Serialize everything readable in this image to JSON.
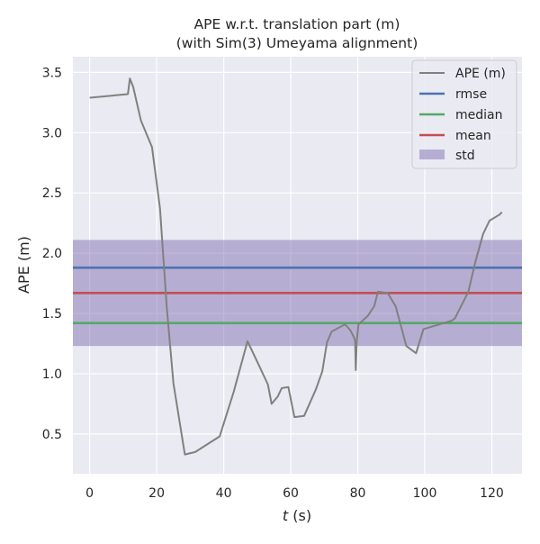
{
  "chart_data": {
    "type": "line",
    "title": "APE w.r.t. translation part (m)",
    "subtitle": "(with Sim(3) Umeyama alignment)",
    "xlabel_var": "t",
    "xlabel_unit": " (s)",
    "ylabel": "APE (m)",
    "xlim": [
      -5,
      129
    ],
    "ylim": [
      0.17,
      3.63
    ],
    "xticks": [
      0,
      20,
      40,
      60,
      80,
      100,
      120
    ],
    "yticks": [
      0.5,
      1.0,
      1.5,
      2.0,
      2.5,
      3.0,
      3.5
    ],
    "xtick_labels": [
      "0",
      "20",
      "40",
      "60",
      "80",
      "100",
      "120"
    ],
    "ytick_labels": [
      "0.5",
      "1.0",
      "1.5",
      "2.0",
      "2.5",
      "3.0",
      "3.5"
    ],
    "grid": true,
    "legend_position": "top-right",
    "colors": {
      "background": "#EAEAF2",
      "grid": "#FFFFFF",
      "ape": "#808080",
      "rmse": "#4C72B0",
      "median": "#55A868",
      "mean": "#C44E52",
      "std_fill": "#8172B2"
    },
    "series": [
      {
        "name": "APE (m)",
        "x": [
          0,
          11.4,
          12,
          13,
          15.3,
          18.6,
          21,
          23,
          25,
          28.4,
          31.5,
          38.8,
          43,
          47.1,
          50,
          53.2,
          54.3,
          56.1,
          57.3,
          59.3,
          61.1,
          64,
          67.5,
          69.4,
          70.8,
          72.2,
          76.2,
          77.8,
          78.9,
          79.2,
          79.4,
          79.7,
          80.2,
          83,
          84.9,
          86,
          88.9,
          91.3,
          94.5,
          97.4,
          99.6,
          108,
          109,
          113,
          115,
          117.4,
          119.3,
          122.3,
          123
        ],
        "y": [
          3.29,
          3.32,
          3.45,
          3.38,
          3.1,
          2.88,
          2.37,
          1.55,
          0.92,
          0.33,
          0.35,
          0.48,
          0.85,
          1.27,
          1.1,
          0.91,
          0.75,
          0.81,
          0.88,
          0.89,
          0.64,
          0.65,
          0.87,
          1.02,
          1.26,
          1.35,
          1.41,
          1.36,
          1.3,
          1.27,
          1.03,
          1.27,
          1.41,
          1.48,
          1.56,
          1.68,
          1.67,
          1.56,
          1.23,
          1.17,
          1.37,
          1.44,
          1.46,
          1.68,
          1.92,
          2.16,
          2.27,
          2.32,
          2.34
        ]
      },
      {
        "name": "rmse",
        "y": 1.88
      },
      {
        "name": "median",
        "y": 1.42
      },
      {
        "name": "mean",
        "y": 1.67
      },
      {
        "name": "std",
        "range": [
          1.23,
          2.11
        ]
      }
    ]
  }
}
